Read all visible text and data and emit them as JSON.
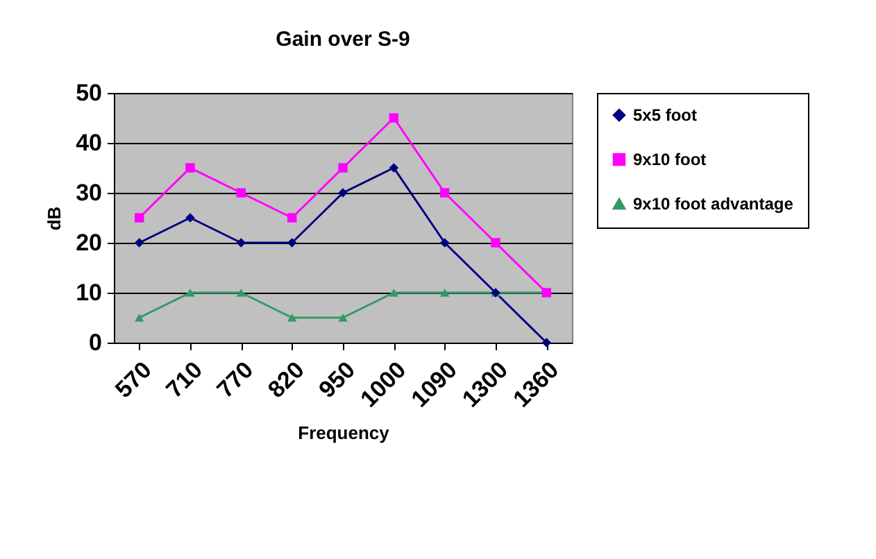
{
  "chart_data": {
    "type": "line",
    "title": "Gain over S-9",
    "xlabel": "Frequency",
    "ylabel": "dB",
    "categories": [
      "570",
      "710",
      "770",
      "820",
      "950",
      "1000",
      "1090",
      "1300",
      "1360"
    ],
    "series": [
      {
        "name": "5x5 foot",
        "color": "#000080",
        "marker": "diamond",
        "values": [
          20,
          25,
          20,
          20,
          30,
          35,
          20,
          10,
          0
        ]
      },
      {
        "name": "9x10 foot",
        "color": "#ff00ff",
        "marker": "square",
        "values": [
          25,
          35,
          30,
          25,
          35,
          45,
          30,
          20,
          10
        ]
      },
      {
        "name": "9x10 foot advantage",
        "color": "#339966",
        "marker": "triangle",
        "values": [
          5,
          10,
          10,
          5,
          5,
          10,
          10,
          10,
          10
        ]
      }
    ],
    "ylim": [
      0,
      50
    ],
    "yticks": [
      0,
      10,
      20,
      30,
      40,
      50
    ],
    "grid": "y",
    "legend": "right"
  }
}
